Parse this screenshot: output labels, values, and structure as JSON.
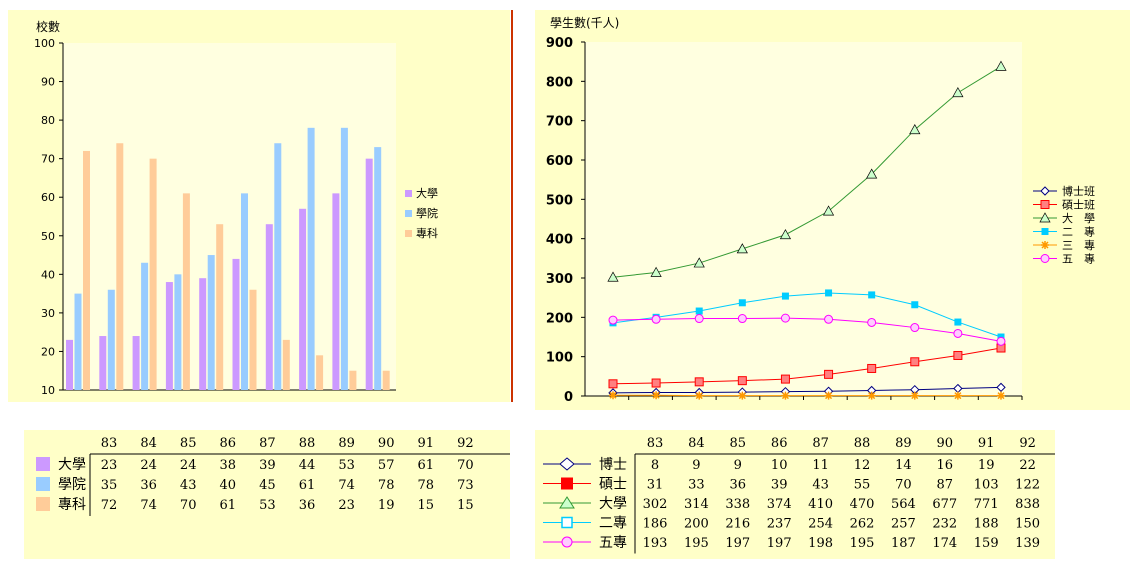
{
  "colors": {
    "panel_bg": "#ffffc8",
    "plot_bg": "#ffffe0",
    "university": "#cc99ff",
    "college": "#99ccff",
    "junior_college": "#ffcc99",
    "phd": "#000080",
    "masters": "#ff0000",
    "undergrad": "#339933",
    "two_year": "#00ccff",
    "three_year": "#ff9900",
    "five_year": "#ff00ff"
  },
  "chart_data": [
    {
      "type": "bar",
      "title": "校數",
      "categories": [
        "83",
        "84",
        "85",
        "86",
        "87",
        "88",
        "89",
        "90",
        "91",
        "92"
      ],
      "ylim": [
        10,
        100
      ],
      "yticks": [
        10,
        20,
        30,
        40,
        50,
        60,
        70,
        80,
        90,
        100
      ],
      "grid": false,
      "legend_position": "right",
      "series": [
        {
          "name": "大學",
          "values": [
            23,
            24,
            24,
            38,
            39,
            44,
            53,
            57,
            61,
            70
          ]
        },
        {
          "name": "學院",
          "values": [
            35,
            36,
            43,
            40,
            45,
            61,
            74,
            78,
            78,
            73
          ]
        },
        {
          "name": "專科",
          "values": [
            72,
            74,
            70,
            61,
            53,
            36,
            23,
            19,
            15,
            15
          ]
        }
      ]
    },
    {
      "type": "line",
      "title": "學生數(千人)",
      "categories": [
        "83",
        "84",
        "85",
        "86",
        "87",
        "88",
        "89",
        "90",
        "91",
        "92"
      ],
      "ylim": [
        0,
        900
      ],
      "yticks": [
        0,
        100,
        200,
        300,
        400,
        500,
        600,
        700,
        800,
        900
      ],
      "grid": false,
      "legend_position": "right",
      "series": [
        {
          "name": "博士班",
          "values": [
            8,
            9,
            9,
            10,
            11,
            12,
            14,
            16,
            19,
            22
          ]
        },
        {
          "name": "碩士班",
          "values": [
            31,
            33,
            36,
            39,
            43,
            55,
            70,
            87,
            103,
            122
          ]
        },
        {
          "name": "大　學",
          "values": [
            302,
            314,
            338,
            374,
            410,
            470,
            564,
            677,
            771,
            838
          ]
        },
        {
          "name": "二　專",
          "values": [
            186,
            200,
            216,
            237,
            254,
            262,
            257,
            232,
            188,
            150
          ]
        },
        {
          "name": "三　專",
          "values": [
            2,
            2,
            1,
            1,
            1,
            1,
            1,
            1,
            1,
            1
          ]
        },
        {
          "name": "五　專",
          "values": [
            193,
            195,
            197,
            197,
            198,
            195,
            187,
            174,
            159,
            139
          ]
        }
      ]
    }
  ],
  "table_left": {
    "headers": [
      "83",
      "84",
      "85",
      "86",
      "87",
      "88",
      "89",
      "90",
      "91",
      "92"
    ],
    "rows": [
      {
        "label": "大學",
        "values": [
          "23",
          "24",
          "24",
          "38",
          "39",
          "44",
          "53",
          "57",
          "61",
          "70"
        ]
      },
      {
        "label": "學院",
        "values": [
          "35",
          "36",
          "43",
          "40",
          "45",
          "61",
          "74",
          "78",
          "78",
          "73"
        ]
      },
      {
        "label": "專科",
        "values": [
          "72",
          "74",
          "70",
          "61",
          "53",
          "36",
          "23",
          "19",
          "15",
          "15"
        ]
      }
    ]
  },
  "table_right": {
    "headers": [
      "83",
      "84",
      "85",
      "86",
      "87",
      "88",
      "89",
      "90",
      "91",
      "92"
    ],
    "rows": [
      {
        "label": "博士",
        "values": [
          "8",
          "9",
          "9",
          "10",
          "11",
          "12",
          "14",
          "16",
          "19",
          "22"
        ]
      },
      {
        "label": "碩士",
        "values": [
          "31",
          "33",
          "36",
          "39",
          "43",
          "55",
          "70",
          "87",
          "103",
          "122"
        ]
      },
      {
        "label": "大學",
        "values": [
          "302",
          "314",
          "338",
          "374",
          "410",
          "470",
          "564",
          "677",
          "771",
          "838"
        ]
      },
      {
        "label": "二專",
        "values": [
          "186",
          "200",
          "216",
          "237",
          "254",
          "262",
          "257",
          "232",
          "188",
          "150"
        ]
      },
      {
        "label": "五專",
        "values": [
          "193",
          "195",
          "197",
          "197",
          "198",
          "195",
          "187",
          "174",
          "159",
          "139"
        ]
      }
    ]
  }
}
